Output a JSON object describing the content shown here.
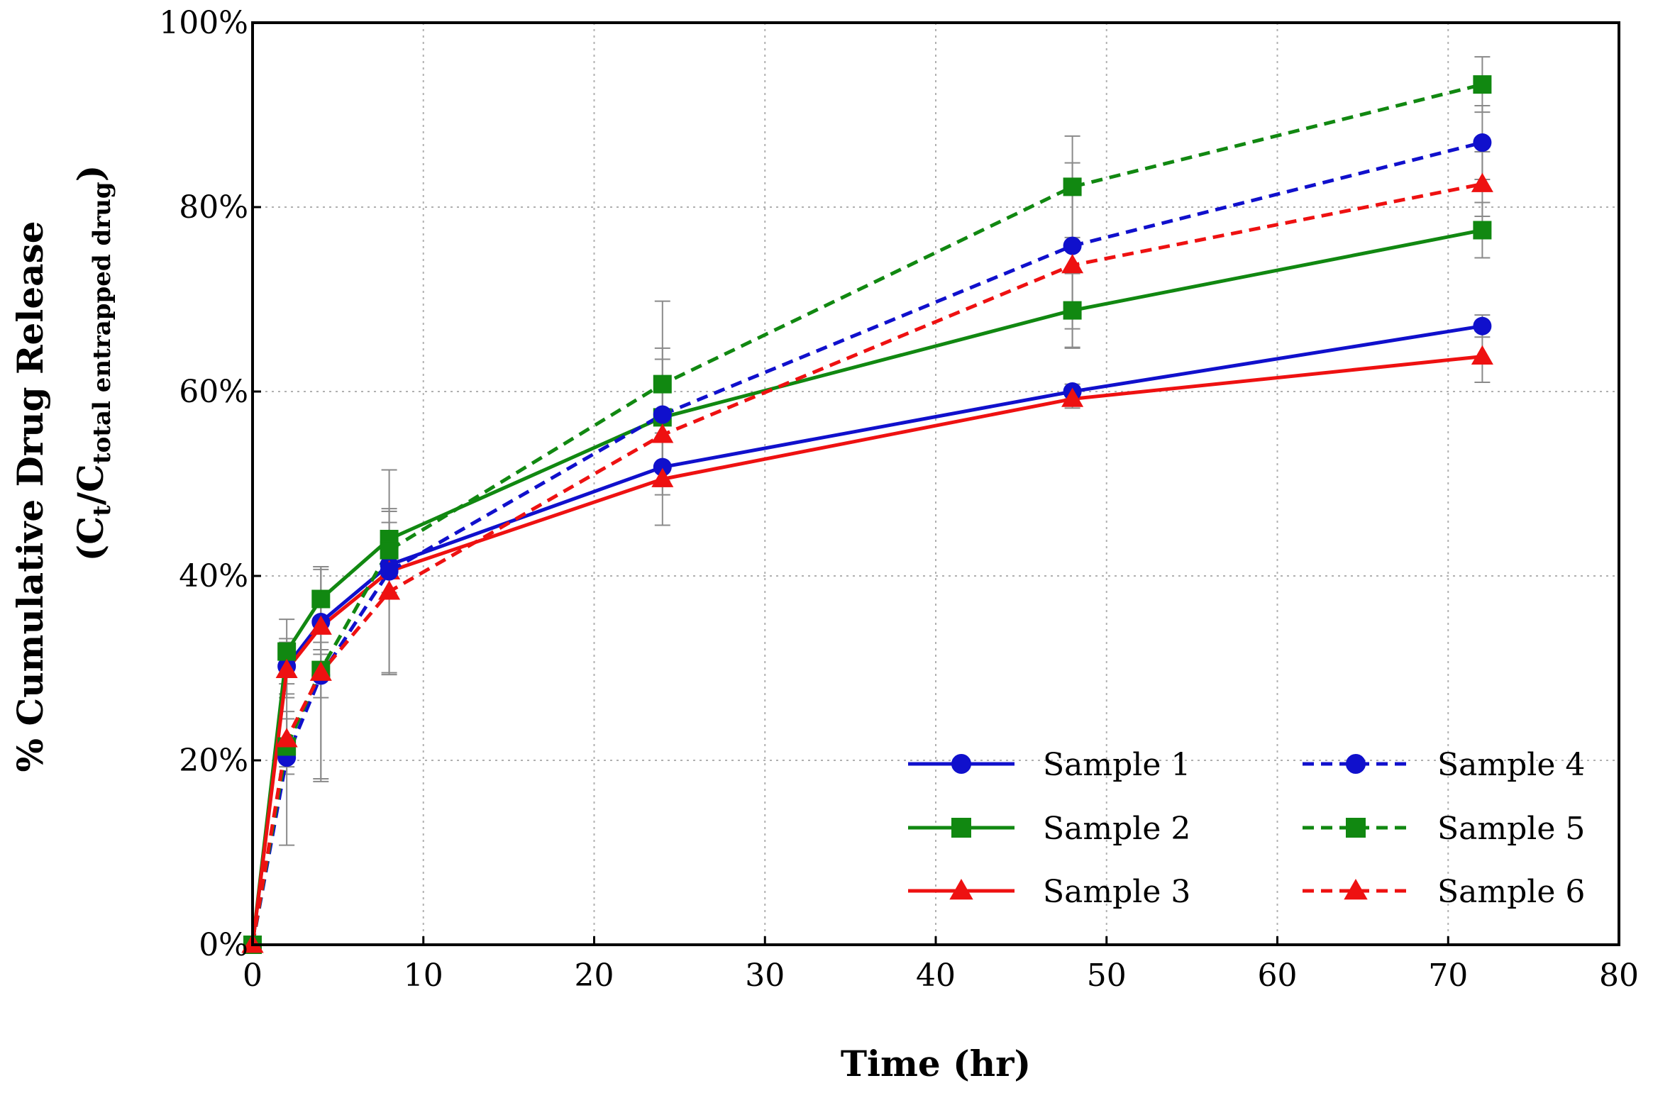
{
  "chart_data": {
    "type": "line",
    "xlabel": "Time (hr)",
    "ylabel_main": "% Cumulative Drug Release",
    "ylabel_sub": {
      "open": "(C",
      "sub1": "t",
      "slash": "/C",
      "sub2": "total entrapped drug",
      "close": ")"
    },
    "xlim": [
      0,
      80
    ],
    "ylim": [
      0,
      100
    ],
    "xticks": [
      0,
      10,
      20,
      30,
      40,
      50,
      60,
      70,
      80
    ],
    "xtick_labels": [
      "0",
      "10",
      "20",
      "30",
      "40",
      "50",
      "60",
      "70",
      "80"
    ],
    "yticks": [
      0,
      20,
      40,
      60,
      80,
      100
    ],
    "ytick_labels": [
      "0%",
      "20%",
      "40%",
      "60%",
      "80%",
      "100%"
    ],
    "grid": true,
    "legend_position": "bottom-right",
    "x": [
      0,
      2,
      4,
      8,
      24,
      48,
      72
    ],
    "series": [
      {
        "name": "Sample 1",
        "color": "#1010cc",
        "marker": "circle",
        "dash": "solid",
        "values": [
          0,
          30.2,
          35.0,
          41.2,
          51.8,
          60.0,
          67.1
        ],
        "errors": [
          0,
          3.0,
          3.0,
          3.0,
          3.0,
          0.8,
          1.2
        ]
      },
      {
        "name": "Sample 2",
        "color": "#118811",
        "marker": "square",
        "dash": "solid",
        "values": [
          0,
          31.8,
          37.5,
          44.0,
          57.2,
          68.8,
          77.5
        ],
        "errors": [
          0,
          3.5,
          3.5,
          3.0,
          7.5,
          4.0,
          3.0
        ]
      },
      {
        "name": "Sample 3",
        "color": "#ee1111",
        "marker": "triangle",
        "dash": "solid",
        "values": [
          0,
          29.8,
          34.5,
          40.5,
          50.5,
          59.2,
          63.8
        ],
        "errors": [
          0,
          3.0,
          3.0,
          3.0,
          5.0,
          1.0,
          2.8
        ]
      },
      {
        "name": "Sample 4",
        "color": "#1010cc",
        "marker": "circle",
        "dash": "dashed",
        "values": [
          0,
          20.3,
          29.2,
          40.5,
          57.5,
          75.8,
          87.0
        ],
        "errors": [
          0,
          9.5,
          11.5,
          11.0,
          6.0,
          9.0,
          4.0
        ]
      },
      {
        "name": "Sample 5",
        "color": "#118811",
        "marker": "square",
        "dash": "dashed",
        "values": [
          0,
          21.5,
          29.8,
          42.8,
          60.8,
          82.2,
          93.3
        ],
        "errors": [
          0,
          3.0,
          3.0,
          3.0,
          9.0,
          5.5,
          3.0
        ]
      },
      {
        "name": "Sample 6",
        "color": "#ee1111",
        "marker": "triangle",
        "dash": "dashed",
        "values": [
          0,
          22.3,
          29.5,
          38.3,
          55.3,
          73.7,
          82.5
        ],
        "errors": [
          0,
          3.0,
          11.5,
          9.0,
          5.0,
          9.0,
          3.5
        ]
      }
    ]
  }
}
